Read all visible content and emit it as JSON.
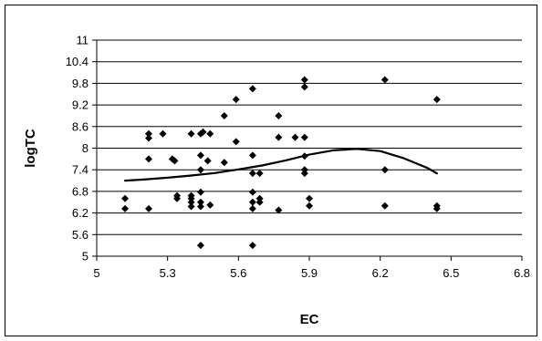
{
  "chart_data": {
    "type": "scatter",
    "title": "",
    "xlabel": "EC",
    "ylabel": "logTC",
    "xlim": [
      5,
      6.8
    ],
    "ylim": [
      5,
      11
    ],
    "x_ticks": [
      5,
      5.3,
      5.6,
      5.9,
      6.2,
      6.5,
      6.8
    ],
    "x_tick_labels": [
      "5",
      "5.3",
      "5.6",
      "5.9",
      "6.2",
      "6.5",
      "6.8"
    ],
    "y_ticks": [
      5,
      5.6,
      6.2,
      6.8,
      7.4,
      8,
      8.6,
      9.2,
      9.8,
      10.4,
      11
    ],
    "y_tick_labels": [
      "5",
      "5.6",
      "6.2",
      "6.8",
      "7.4",
      "8",
      "8.6",
      "9.2",
      "9.8",
      "10.4",
      "11"
    ],
    "grid": "horizontal",
    "legend": "none",
    "colors": {
      "points": "#000000",
      "trend": "#000000",
      "grid": "#000000",
      "frame": "#000000"
    },
    "series": [
      {
        "kind": "points",
        "marker": "diamond",
        "points": [
          [
            5.12,
            6.6
          ],
          [
            5.12,
            6.32
          ],
          [
            5.22,
            8.4
          ],
          [
            5.22,
            8.28
          ],
          [
            5.22,
            7.7
          ],
          [
            5.22,
            6.32
          ],
          [
            5.28,
            8.4
          ],
          [
            5.32,
            7.7
          ],
          [
            5.33,
            7.65
          ],
          [
            5.34,
            6.68
          ],
          [
            5.34,
            6.6
          ],
          [
            5.4,
            8.4
          ],
          [
            5.4,
            6.68
          ],
          [
            5.4,
            6.6
          ],
          [
            5.4,
            6.5
          ],
          [
            5.4,
            6.38
          ],
          [
            5.44,
            8.4
          ],
          [
            5.44,
            7.8
          ],
          [
            5.44,
            7.4
          ],
          [
            5.44,
            6.78
          ],
          [
            5.44,
            6.5
          ],
          [
            5.44,
            6.38
          ],
          [
            5.44,
            5.3
          ],
          [
            5.45,
            8.45
          ],
          [
            5.47,
            7.65
          ],
          [
            5.48,
            8.4
          ],
          [
            5.48,
            6.42
          ],
          [
            5.54,
            8.9
          ],
          [
            5.54,
            7.6
          ],
          [
            5.59,
            9.35
          ],
          [
            5.59,
            8.18
          ],
          [
            5.66,
            9.65
          ],
          [
            5.66,
            7.8
          ],
          [
            5.66,
            7.3
          ],
          [
            5.66,
            6.78
          ],
          [
            5.66,
            6.5
          ],
          [
            5.66,
            6.32
          ],
          [
            5.66,
            5.3
          ],
          [
            5.69,
            7.3
          ],
          [
            5.69,
            6.6
          ],
          [
            5.69,
            6.5
          ],
          [
            5.77,
            8.9
          ],
          [
            5.77,
            8.3
          ],
          [
            5.77,
            6.28
          ],
          [
            5.84,
            8.3
          ],
          [
            5.88,
            9.9
          ],
          [
            5.88,
            9.7
          ],
          [
            5.88,
            8.3
          ],
          [
            5.88,
            7.78
          ],
          [
            5.88,
            7.4
          ],
          [
            5.88,
            7.3
          ],
          [
            5.9,
            6.6
          ],
          [
            5.9,
            6.4
          ],
          [
            6.22,
            9.9
          ],
          [
            6.22,
            7.4
          ],
          [
            6.22,
            6.4
          ],
          [
            6.44,
            9.35
          ],
          [
            6.44,
            6.4
          ],
          [
            6.44,
            6.32
          ]
        ]
      },
      {
        "kind": "trendline",
        "points": [
          [
            5.12,
            7.1
          ],
          [
            5.2,
            7.13
          ],
          [
            5.3,
            7.18
          ],
          [
            5.4,
            7.24
          ],
          [
            5.5,
            7.31
          ],
          [
            5.6,
            7.41
          ],
          [
            5.7,
            7.52
          ],
          [
            5.8,
            7.66
          ],
          [
            5.9,
            7.82
          ],
          [
            6.0,
            7.94
          ],
          [
            6.1,
            7.98
          ],
          [
            6.2,
            7.92
          ],
          [
            6.3,
            7.72
          ],
          [
            6.4,
            7.45
          ],
          [
            6.44,
            7.3
          ]
        ]
      }
    ]
  }
}
